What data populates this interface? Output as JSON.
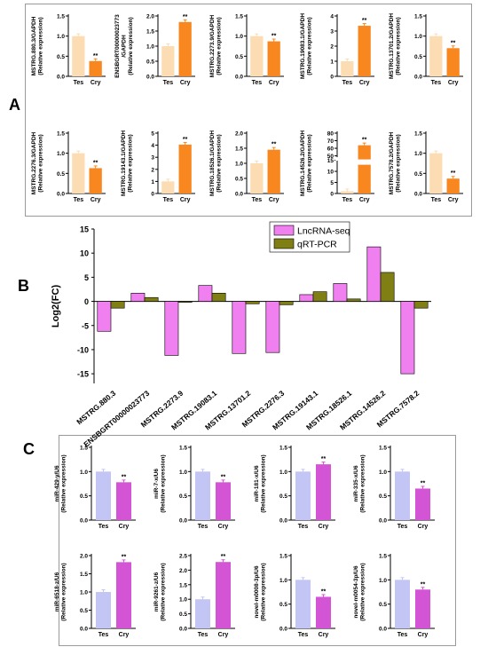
{
  "panel_labels": {
    "a": "A",
    "b": "B",
    "c": "C"
  },
  "colors": {
    "tes_a": "#fcdcb3",
    "cry_a": "#f8871f",
    "tes_c": "#c3c5f5",
    "cry_c": "#d454d6",
    "lnc": "#f07ff0",
    "qrt": "#7f7f14"
  },
  "chart_data": [
    {
      "type": "bar",
      "panel": "A",
      "categories": [
        "Tes",
        "Cry"
      ],
      "values": [
        1.0,
        0.38
      ],
      "ylabel": "MSTRG.880.3/GAPDH\n(Relative expression)",
      "ylim": [
        0,
        1.5
      ],
      "ticks": [
        "0.0",
        "0.5",
        "1.0",
        "1.5"
      ],
      "annotations": [
        "",
        "**"
      ]
    },
    {
      "type": "bar",
      "panel": "A",
      "categories": [
        "Tes",
        "Cry"
      ],
      "values": [
        1.0,
        1.8
      ],
      "ylabel": "ENSBGRT00000023773\n/GAPDH\n(Relative expression)",
      "ylim": [
        0,
        2.0
      ],
      "ticks": [
        "0.0",
        "0.5",
        "1.0",
        "1.5",
        "2.0"
      ],
      "annotations": [
        "",
        "**"
      ]
    },
    {
      "type": "bar",
      "panel": "A",
      "categories": [
        "Tes",
        "Cry"
      ],
      "values": [
        1.0,
        0.87
      ],
      "ylabel": "MSTRG.2273.9/GAPDH\n(Relative expression)",
      "ylim": [
        0,
        1.5
      ],
      "ticks": [
        "0.0",
        "0.5",
        "1.0",
        "1.5"
      ],
      "annotations": [
        "",
        "**"
      ]
    },
    {
      "type": "bar",
      "panel": "A",
      "categories": [
        "Tes",
        "Cry"
      ],
      "values": [
        1.0,
        3.35
      ],
      "ylabel": "MSTRG.19083.1/GAPDH\n(Relative expression)",
      "ylim": [
        0,
        4
      ],
      "ticks": [
        "0",
        "1",
        "2",
        "3",
        "4"
      ],
      "annotations": [
        "",
        "**"
      ]
    },
    {
      "type": "bar",
      "panel": "A",
      "categories": [
        "Tes",
        "Cry"
      ],
      "values": [
        1.0,
        0.7
      ],
      "ylabel": "MSTRG.13701.2/GAPDH\n(Relative expression)",
      "ylim": [
        0,
        1.5
      ],
      "ticks": [
        "0.0",
        "0.5",
        "1.0",
        "1.5"
      ],
      "annotations": [
        "",
        "**"
      ]
    },
    {
      "type": "bar",
      "panel": "A",
      "categories": [
        "Tes",
        "Cry"
      ],
      "values": [
        1.0,
        0.63
      ],
      "ylabel": "MSTRG.2276.3/GAPDH\n(Relative expression)",
      "ylim": [
        0,
        1.5
      ],
      "ticks": [
        "0.0",
        "0.5",
        "1.0",
        "1.5"
      ],
      "annotations": [
        "",
        "**"
      ]
    },
    {
      "type": "bar",
      "panel": "A",
      "categories": [
        "Tes",
        "Cry"
      ],
      "values": [
        1.0,
        4.05
      ],
      "ylabel": "MSTRG.19143.1/GAPDH\n(Relative expression)",
      "ylim": [
        0,
        5
      ],
      "ticks": [
        "0",
        "1",
        "2",
        "3",
        "4",
        "5"
      ],
      "annotations": [
        "",
        "**"
      ]
    },
    {
      "type": "bar",
      "panel": "A",
      "categories": [
        "Tes",
        "Cry"
      ],
      "values": [
        1.0,
        1.45
      ],
      "ylabel": "MSTRG.18526.1/GAPDH\n(Relative expression)",
      "ylim": [
        0,
        2.0
      ],
      "ticks": [
        "0.0",
        "0.5",
        "1.0",
        "1.5",
        "2.0"
      ],
      "annotations": [
        "",
        "**"
      ]
    },
    {
      "type": "bar",
      "panel": "A",
      "categories": [
        "Tes",
        "Cry"
      ],
      "values": [
        1.0,
        64
      ],
      "ylabel": "MSTRG.14526.2/GAPDH\n(Relative expression)",
      "axis_break": [
        15,
        50
      ],
      "ticks": [
        "0",
        "5",
        "10",
        "15",
        "50",
        "60",
        "70",
        "80"
      ],
      "annotations": [
        "",
        "**"
      ]
    },
    {
      "type": "bar",
      "panel": "A",
      "categories": [
        "Tes",
        "Cry"
      ],
      "values": [
        1.0,
        0.37
      ],
      "ylabel": "MSTRG.7578.2/GAPDH\n(Relative expression)",
      "ylim": [
        0,
        1.5
      ],
      "ticks": [
        "0.0",
        "0.5",
        "1.0",
        "1.5"
      ],
      "annotations": [
        "",
        "**"
      ]
    },
    {
      "type": "bar",
      "panel": "B",
      "categories": [
        "MSTRG.880.3",
        "ENSBGRT00000023773",
        "MSTRG.2273.9",
        "MSTRG.19083.1",
        "MSTRG.13701.2",
        "MSTRG.2276.3",
        "MSTRG.19143.1",
        "MSTRG.18526.1",
        "MSTRG.14526.2",
        "MSTRG.7578.2"
      ],
      "series": [
        {
          "name": "LncRNA-seq",
          "values": [
            -6.2,
            1.7,
            -11.2,
            3.3,
            -10.8,
            -10.6,
            1.4,
            3.7,
            11.3,
            -15.0
          ]
        },
        {
          "name": "qRT-PCR",
          "values": [
            -1.4,
            0.8,
            -0.2,
            1.7,
            -0.5,
            -0.7,
            2.0,
            0.5,
            6.0,
            -1.4
          ]
        }
      ],
      "ylabel": "Log2(FC)",
      "ylim": [
        -17,
        15
      ],
      "ticks": [
        "-15",
        "-10",
        "-5",
        "0",
        "5",
        "10",
        "15"
      ],
      "legend": "top-right"
    },
    {
      "type": "bar",
      "panel": "C",
      "categories": [
        "Tes",
        "Cry"
      ],
      "values": [
        1.0,
        0.78
      ],
      "ylabel": "miR-429-y/U6\n(Relative expression)",
      "ylim": [
        0,
        1.5
      ],
      "ticks": [
        "0.0",
        "0.5",
        "1.0",
        "1.5"
      ],
      "annotations": [
        "",
        "**"
      ]
    },
    {
      "type": "bar",
      "panel": "C",
      "categories": [
        "Tes",
        "Cry"
      ],
      "values": [
        1.0,
        0.78
      ],
      "ylabel": "miR-7-x/U6\n(Relative expression)",
      "ylim": [
        0,
        1.5
      ],
      "ticks": [
        "0.0",
        "0.5",
        "1.0",
        "1.5"
      ],
      "annotations": [
        "",
        "**"
      ]
    },
    {
      "type": "bar",
      "panel": "C",
      "categories": [
        "Tes",
        "Cry"
      ],
      "values": [
        1.0,
        1.15
      ],
      "ylabel": "miR-181-x/U6\n(Relative expression)",
      "ylim": [
        0,
        1.5
      ],
      "ticks": [
        "0.0",
        "0.5",
        "1.0",
        "1.5"
      ],
      "annotations": [
        "",
        "**"
      ]
    },
    {
      "type": "bar",
      "panel": "C",
      "categories": [
        "Tes",
        "Cry"
      ],
      "values": [
        1.0,
        0.65
      ],
      "ylabel": "miR-335-x/U6\n(Relative expression)",
      "ylim": [
        0,
        1.5
      ],
      "ticks": [
        "0.0",
        "0.5",
        "1.0",
        "1.5"
      ],
      "annotations": [
        "",
        "**"
      ]
    },
    {
      "type": "bar",
      "panel": "C",
      "categories": [
        "Tes",
        "Cry"
      ],
      "values": [
        1.0,
        1.82
      ],
      "ylabel": "miR-6518-z/U6\n(Relative expression)",
      "ylim": [
        0,
        2.0
      ],
      "ticks": [
        "0.0",
        "0.5",
        "1.0",
        "1.5",
        "2.0"
      ],
      "annotations": [
        "",
        "**"
      ]
    },
    {
      "type": "bar",
      "panel": "C",
      "categories": [
        "Tes",
        "Cry"
      ],
      "values": [
        1.0,
        2.28
      ],
      "ylabel": "miR-9261-z/U6\n(Relative expression)",
      "ylim": [
        0,
        2.5
      ],
      "ticks": [
        "0.0",
        "0.5",
        "1.0",
        "1.5",
        "2.0",
        "2.5"
      ],
      "annotations": [
        "",
        "**"
      ]
    },
    {
      "type": "bar",
      "panel": "C",
      "categories": [
        "Tes",
        "Cry"
      ],
      "values": [
        1.0,
        0.65
      ],
      "ylabel": "novel-m0008-3p/U6\n(Relative expression)",
      "ylim": [
        0,
        1.5
      ],
      "ticks": [
        "0.0",
        "0.5",
        "1.0",
        "1.5"
      ],
      "annotations": [
        "",
        "**"
      ]
    },
    {
      "type": "bar",
      "panel": "C",
      "categories": [
        "Tes",
        "Cry"
      ],
      "values": [
        1.0,
        0.8
      ],
      "ylabel": "novel-m0054-3p/U6\n(Relative expression)",
      "ylim": [
        0,
        1.5
      ],
      "ticks": [
        "0.0",
        "0.5",
        "1.0",
        "1.5"
      ],
      "annotations": [
        "",
        "**"
      ]
    }
  ]
}
